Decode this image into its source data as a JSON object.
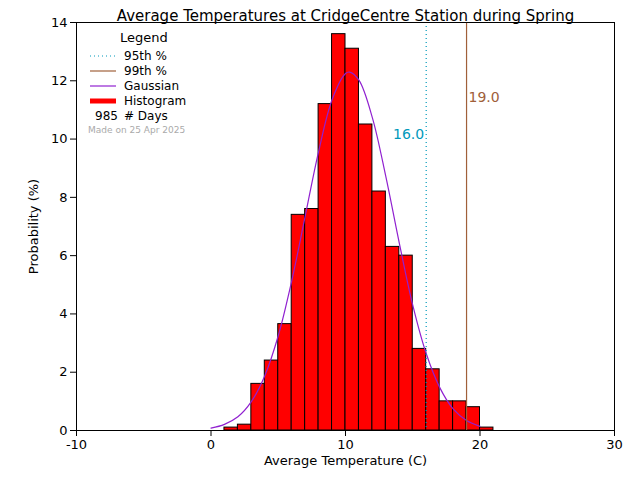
{
  "chart_data": {
    "type": "histogram",
    "title": "Average Temperatures at CridgeCentre Station during Spring",
    "x_label": "Average Temperature (C)",
    "y_label": "Probability (%)",
    "bins": [
      1,
      2,
      3,
      4,
      5,
      6,
      7,
      8,
      9,
      10,
      11,
      12,
      13,
      14,
      15,
      16,
      17,
      18,
      19,
      20,
      21
    ],
    "values": [
      0.1,
      0.2,
      1.6,
      2.4,
      3.65,
      7.4,
      7.6,
      11.2,
      13.6,
      13.1,
      10.5,
      8.2,
      6.3,
      6.0,
      2.8,
      2.1,
      1.0,
      1.0,
      0.8,
      0.1
    ],
    "histogram_name": "Histogram",
    "color": "#ff0000",
    "xlim": [
      -10,
      30
    ],
    "xticks": [
      -10,
      0,
      10,
      20,
      30
    ],
    "ylim": [
      0,
      14
    ],
    "yticks": [
      0,
      2,
      4,
      6,
      8,
      10,
      12,
      14
    ],
    "legend": "top-left",
    "legend_title": "Legend",
    "series": [
      {
        "name": "Gaussian",
        "type": "line",
        "color": "#9020d0",
        "x": [
          0,
          1,
          2,
          3,
          4,
          5,
          6,
          7,
          8,
          9,
          10,
          10.3,
          11,
          12,
          13,
          14,
          15,
          16,
          17,
          18,
          19,
          20
        ],
        "values": [
          0.08,
          0.21,
          0.47,
          0.99,
          1.88,
          3.25,
          5.13,
          7.35,
          9.57,
          11.35,
          12.25,
          12.3,
          12.02,
          10.73,
          8.71,
          6.43,
          4.3,
          2.64,
          1.48,
          0.74,
          0.34,
          0.14
        ]
      }
    ],
    "percentiles": [
      {
        "name": "95th %",
        "value": 16.0,
        "label": "16.0",
        "color": "#0099bb",
        "line_style": "dotted"
      },
      {
        "name": "99th %",
        "value": 19.0,
        "label": "19.0",
        "color": "#a0603a",
        "line_style": "solid"
      }
    ],
    "days": 985,
    "days_label": "# Days",
    "made_on": "Made on 25 Apr 2025"
  }
}
